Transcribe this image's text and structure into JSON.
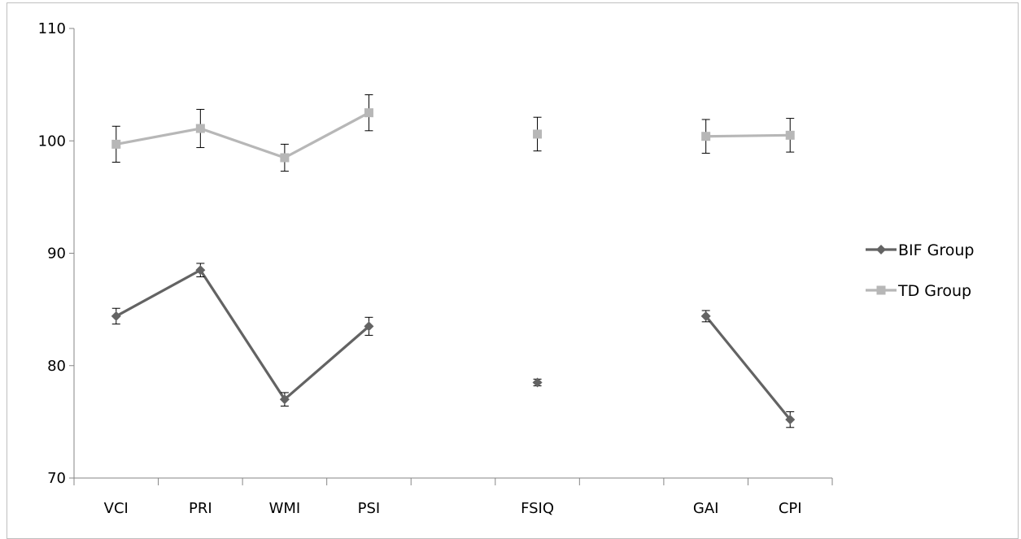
{
  "chart_data": {
    "type": "line",
    "title": "",
    "xlabel": "",
    "ylabel": "",
    "categories": [
      "VCI",
      "PRI",
      "WMI",
      "PSI",
      "",
      "FSIQ",
      "",
      "GAI",
      "CPI"
    ],
    "ylim": [
      70,
      110
    ],
    "yticks": [
      "70",
      "80",
      "90",
      "100",
      "110"
    ],
    "ytick_values": [
      70,
      80,
      90,
      100,
      110
    ],
    "grid": false,
    "legend_position": "right",
    "series": [
      {
        "name": "BIF Group",
        "marker": "diamond",
        "color": "#636363",
        "values": [
          84.4,
          88.5,
          77.0,
          83.5,
          null,
          78.5,
          null,
          84.4,
          75.2
        ],
        "error": [
          0.7,
          0.6,
          0.6,
          0.8,
          null,
          0.3,
          null,
          0.5,
          0.7
        ]
      },
      {
        "name": "TD Group",
        "marker": "square",
        "color": "#b7b7b7",
        "values": [
          99.7,
          101.1,
          98.5,
          102.5,
          null,
          100.6,
          null,
          100.4,
          100.5
        ],
        "error": [
          1.6,
          1.7,
          1.2,
          1.6,
          null,
          1.5,
          null,
          1.5,
          1.5
        ]
      }
    ]
  }
}
